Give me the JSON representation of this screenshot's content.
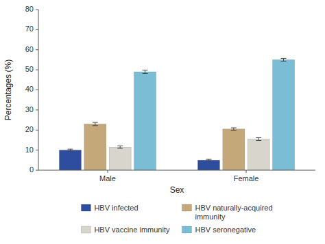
{
  "chart_data": {
    "type": "bar",
    "xlabel": "Sex",
    "ylabel": "Percentages (%)",
    "categories": [
      "Male",
      "Female"
    ],
    "series": [
      {
        "name": "HBV infected",
        "color": "#2e4d9e",
        "values": [
          10.0,
          5.0
        ],
        "errors": [
          0.5,
          0.4
        ]
      },
      {
        "name": "HBV naturally-acquired\nimmunity",
        "color": "#c5a87a",
        "values": [
          23.0,
          20.5
        ],
        "errors": [
          0.8,
          0.6
        ]
      },
      {
        "name": "HBV vaccine immunity",
        "color": "#d8d5cc",
        "values": [
          11.5,
          15.5
        ],
        "errors": [
          0.6,
          0.7
        ]
      },
      {
        "name": "HBV seronegative",
        "color": "#7bbdd4",
        "values": [
          49.0,
          55.0
        ],
        "errors": [
          0.8,
          0.7
        ]
      }
    ],
    "ylim": [
      0,
      80
    ],
    "yticks": [
      0,
      10,
      20,
      30,
      40,
      50,
      60,
      70,
      80
    ],
    "grid": false,
    "legend": "bottom"
  }
}
